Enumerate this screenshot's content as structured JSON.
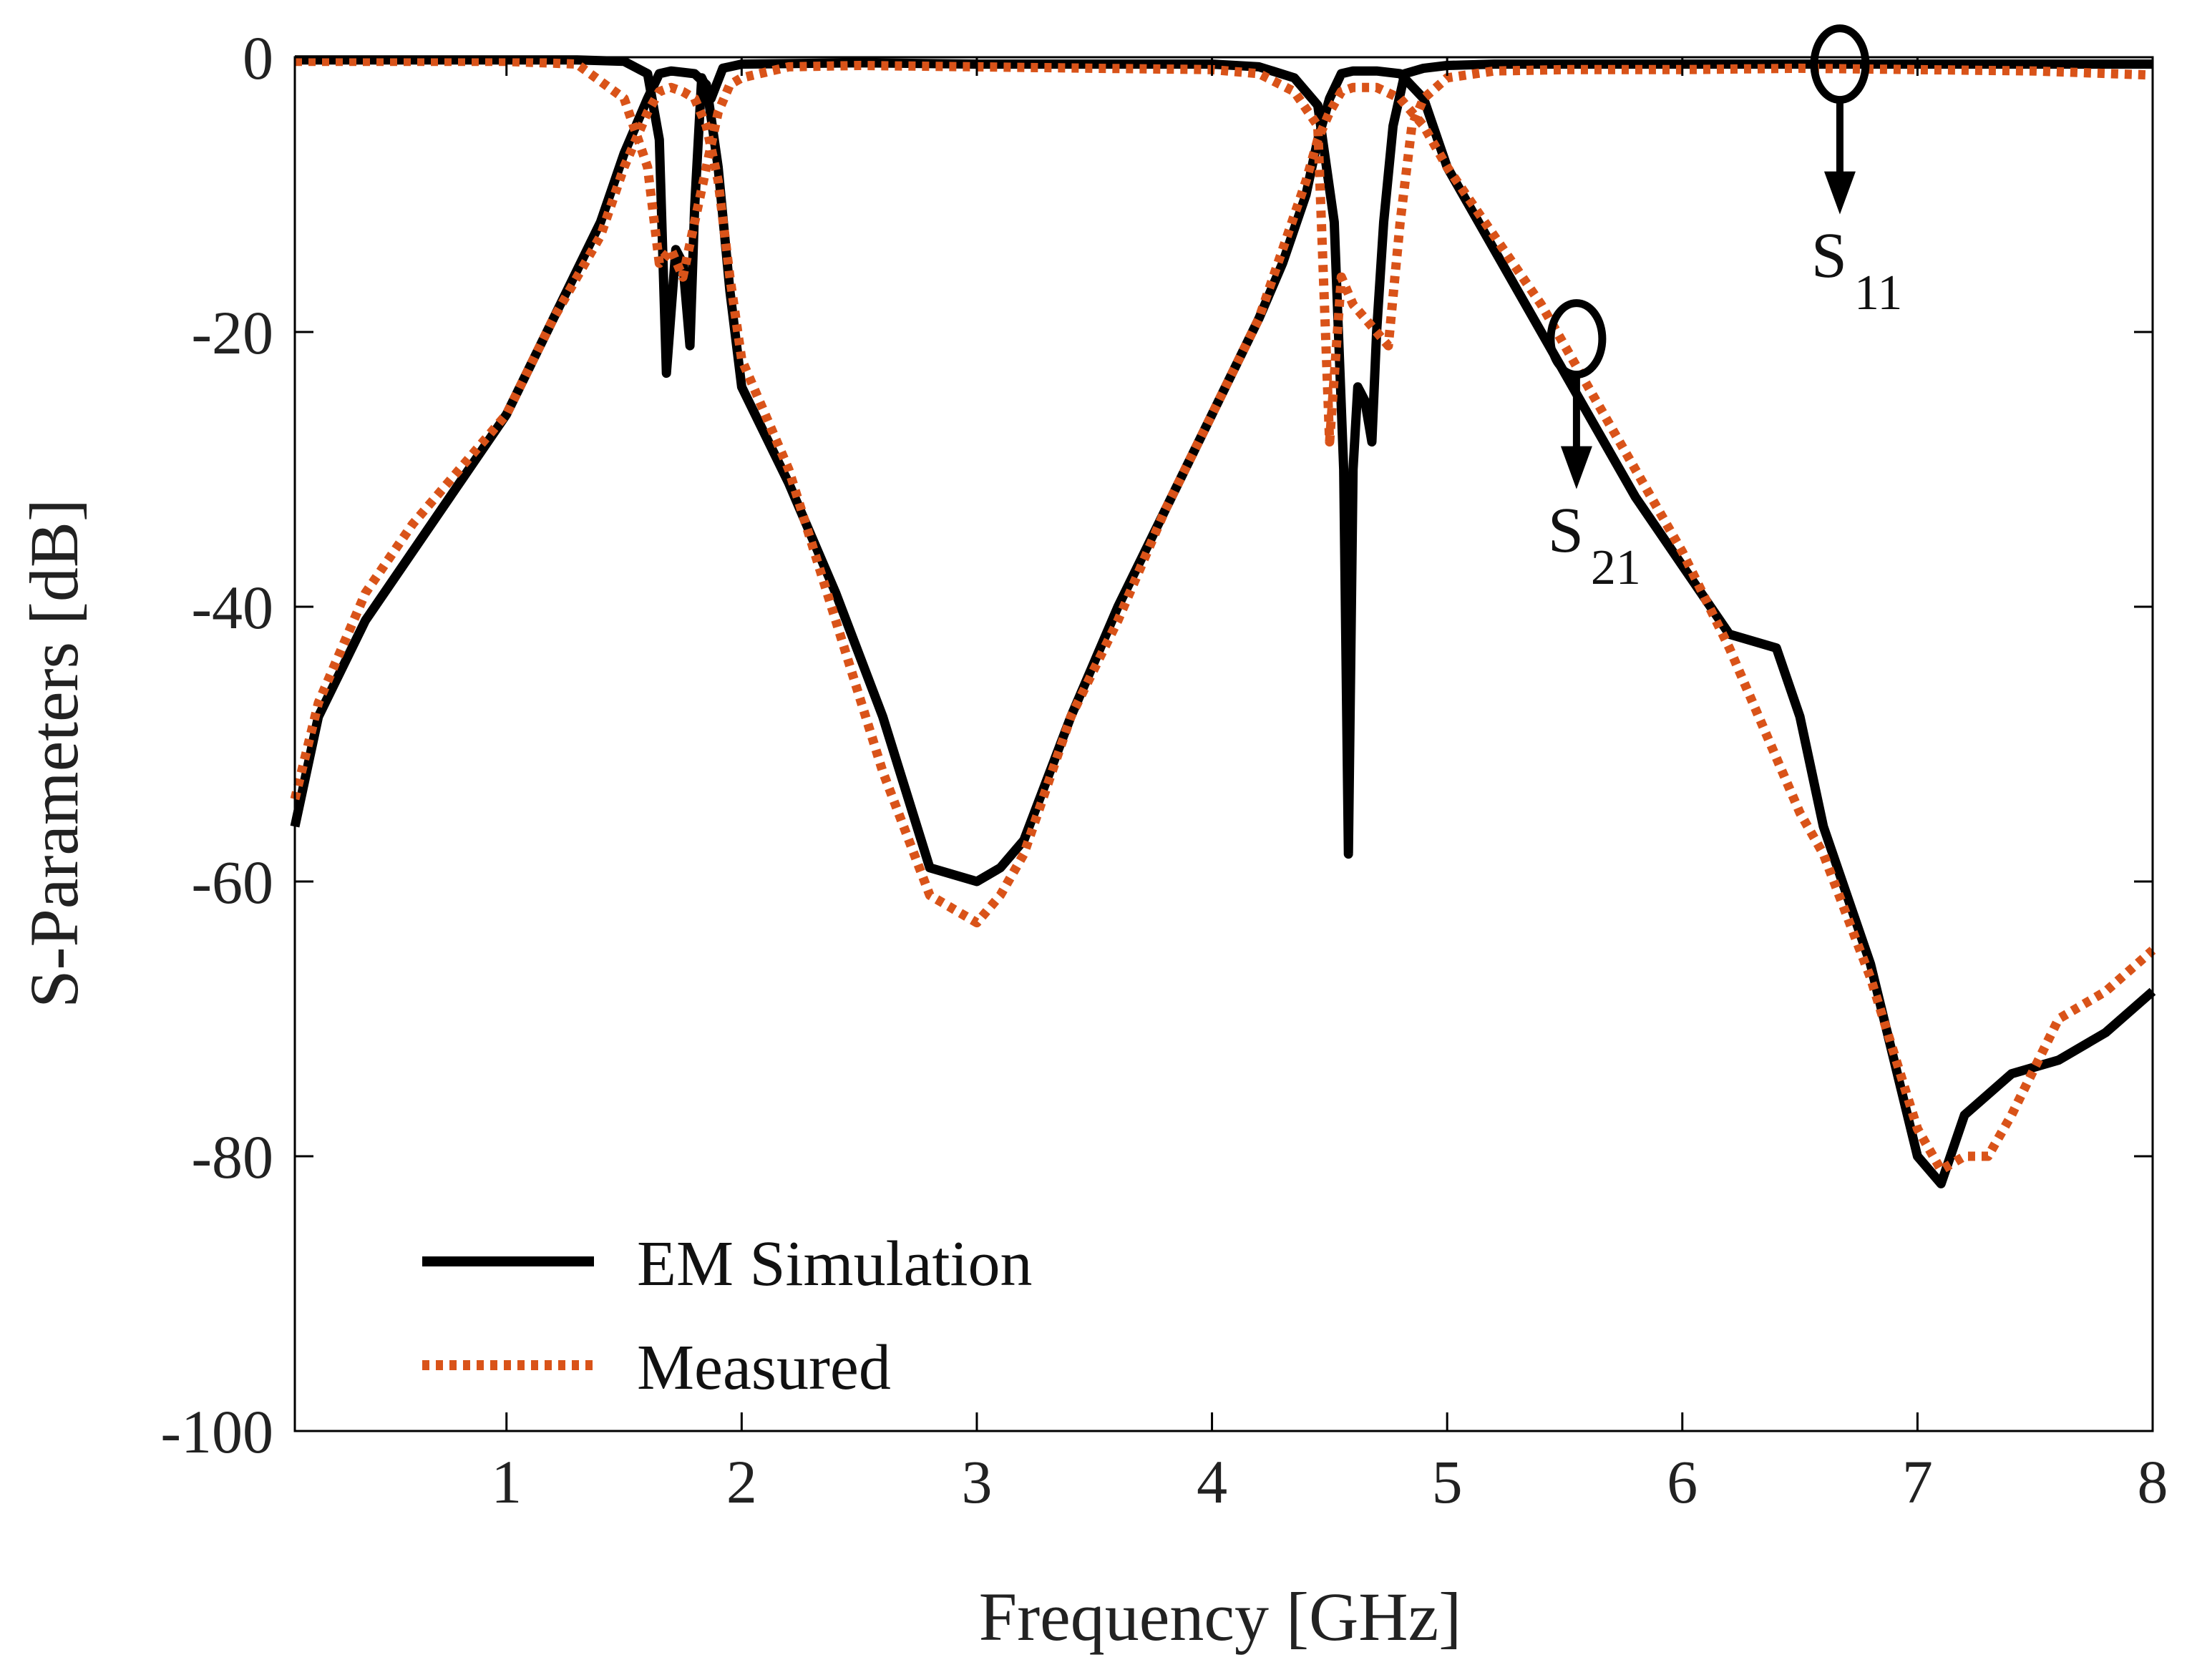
{
  "chart_data": {
    "type": "line",
    "title": "",
    "xlabel": "Frequency [GHz]",
    "ylabel": "S-Parameters [dB]",
    "xlim": [
      0.1,
      8
    ],
    "ylim": [
      -100,
      0
    ],
    "xticks": [
      1,
      2,
      3,
      4,
      5,
      6,
      7,
      8
    ],
    "xtick_labels": [
      "1",
      "2",
      "3",
      "4",
      "5",
      "6",
      "7",
      "8"
    ],
    "yticks": [
      0,
      -20,
      -40,
      -60,
      -80,
      -100
    ],
    "ytick_labels": [
      "0",
      "-20",
      "-40",
      "-60",
      "-80",
      "-100"
    ],
    "grid": false,
    "legend": {
      "position": "bottom-left",
      "entries": [
        "EM Simulation",
        "Measured"
      ]
    },
    "colors": {
      "em": "#000000",
      "measured": "#d95319"
    },
    "annotations": [
      {
        "name": "s21",
        "label": "S",
        "subscript": "21",
        "x": 5.55,
        "y": -20.5,
        "label_y": -36
      },
      {
        "name": "s11",
        "label": "S",
        "subscript": "11",
        "x": 6.67,
        "y": -0.5,
        "label_y": -16
      }
    ],
    "series": [
      {
        "name": "EM Simulation S21",
        "legend": "EM Simulation",
        "style": "solid",
        "color": "#000000",
        "x": [
          0.1,
          0.2,
          0.4,
          0.6,
          0.8,
          1.0,
          1.2,
          1.4,
          1.5,
          1.6,
          1.65,
          1.7,
          1.75,
          1.8,
          1.85,
          1.9,
          1.95,
          2.0,
          2.2,
          2.4,
          2.6,
          2.8,
          3.0,
          3.1,
          3.2,
          3.4,
          3.6,
          3.8,
          4.0,
          4.2,
          4.3,
          4.4,
          4.45,
          4.5,
          4.55,
          4.6,
          4.7,
          4.8,
          4.9,
          5.0,
          5.2,
          5.4,
          5.6,
          5.8,
          6.0,
          6.2,
          6.4,
          6.5,
          6.6,
          6.8,
          7.0,
          7.1,
          7.2,
          7.4,
          7.6,
          7.8,
          8.0
        ],
        "y": [
          -56,
          -48,
          -41,
          -36,
          -31,
          -26,
          -19,
          -12,
          -7,
          -3,
          -1.2,
          -1.0,
          -1.1,
          -1.2,
          -2,
          -8,
          -17,
          -24,
          -31,
          -39,
          -48,
          -59,
          -60,
          -59,
          -57,
          -48,
          -40,
          -33,
          -26,
          -19,
          -15,
          -10,
          -6,
          -3,
          -1.2,
          -1.0,
          -1.0,
          -1.2,
          -3,
          -8,
          -14,
          -20,
          -26,
          -32,
          -37,
          -42,
          -43,
          -48,
          -56,
          -66,
          -80,
          -82,
          -77,
          -74,
          -73,
          -71,
          -68
        ]
      },
      {
        "name": "EM Simulation S11",
        "legend": "EM Simulation",
        "style": "solid",
        "color": "#000000",
        "x": [
          0.1,
          1.0,
          1.3,
          1.5,
          1.6,
          1.65,
          1.68,
          1.72,
          1.75,
          1.78,
          1.8,
          1.83,
          1.87,
          1.92,
          2.0,
          2.5,
          3.0,
          3.5,
          4.0,
          4.2,
          4.35,
          4.45,
          4.52,
          4.56,
          4.58,
          4.6,
          4.62,
          4.65,
          4.68,
          4.7,
          4.73,
          4.77,
          4.82,
          4.9,
          5.0,
          5.2,
          5.5,
          6.0,
          6.5,
          7.0,
          7.5,
          8.0
        ],
        "y": [
          -0.2,
          -0.2,
          -0.2,
          -0.3,
          -1.2,
          -6,
          -23,
          -14,
          -15,
          -21,
          -11,
          -1.5,
          -3,
          -0.8,
          -0.5,
          -0.4,
          -0.5,
          -0.5,
          -0.5,
          -0.7,
          -1.5,
          -3.5,
          -12,
          -30,
          -58,
          -30,
          -24,
          -25,
          -28,
          -20,
          -12,
          -5,
          -1.2,
          -0.8,
          -0.6,
          -0.5,
          -0.5,
          -0.5,
          -0.5,
          -0.5,
          -0.5,
          -0.5
        ]
      },
      {
        "name": "Measured S21",
        "legend": "Measured",
        "style": "dotted",
        "color": "#d95319",
        "x": [
          0.1,
          0.2,
          0.4,
          0.6,
          0.8,
          1.0,
          1.2,
          1.4,
          1.5,
          1.6,
          1.65,
          1.7,
          1.75,
          1.8,
          1.85,
          1.9,
          1.95,
          2.0,
          2.2,
          2.4,
          2.6,
          2.8,
          3.0,
          3.1,
          3.2,
          3.4,
          3.6,
          3.8,
          4.0,
          4.2,
          4.3,
          4.4,
          4.45,
          4.5,
          4.55,
          4.6,
          4.7,
          4.8,
          4.9,
          5.0,
          5.2,
          5.4,
          5.6,
          5.8,
          6.0,
          6.2,
          6.4,
          6.5,
          6.6,
          6.8,
          7.0,
          7.1,
          7.2,
          7.3,
          7.4,
          7.6,
          7.8,
          8.0
        ],
        "y": [
          -54,
          -47,
          -39,
          -34,
          -30,
          -26,
          -19,
          -13,
          -8,
          -4,
          -2.5,
          -2.2,
          -2.5,
          -3,
          -5,
          -9,
          -16,
          -22,
          -30,
          -41,
          -52,
          -61,
          -63,
          -61,
          -58,
          -48,
          -41,
          -33,
          -26,
          -19,
          -14,
          -9,
          -6,
          -4,
          -2.5,
          -2.2,
          -2.2,
          -3,
          -5,
          -8,
          -13,
          -18,
          -24,
          -30,
          -36,
          -43,
          -51,
          -55,
          -58,
          -67,
          -78,
          -81,
          -80,
          -80,
          -77,
          -70,
          -68,
          -65
        ]
      },
      {
        "name": "Measured S11",
        "legend": "Measured",
        "style": "dotted",
        "color": "#d95319",
        "x": [
          0.1,
          1.0,
          1.3,
          1.5,
          1.6,
          1.65,
          1.7,
          1.75,
          1.8,
          1.85,
          1.9,
          1.95,
          2.0,
          2.2,
          2.5,
          3.0,
          3.5,
          4.0,
          4.2,
          4.35,
          4.45,
          4.5,
          4.55,
          4.6,
          4.65,
          4.7,
          4.75,
          4.8,
          4.85,
          4.9,
          5.0,
          5.2,
          5.5,
          6.0,
          6.5,
          7.0,
          7.5,
          8.0
        ],
        "y": [
          -0.3,
          -0.3,
          -0.5,
          -3,
          -8,
          -15,
          -14,
          -16,
          -12,
          -8,
          -4,
          -2,
          -1.5,
          -0.7,
          -0.6,
          -0.7,
          -0.8,
          -0.9,
          -1.2,
          -2.5,
          -5,
          -28,
          -16,
          -18,
          -19,
          -20,
          -21,
          -12,
          -5,
          -3,
          -1.5,
          -1.0,
          -0.9,
          -0.9,
          -0.8,
          -0.9,
          -1.0,
          -1.3
        ]
      }
    ]
  }
}
